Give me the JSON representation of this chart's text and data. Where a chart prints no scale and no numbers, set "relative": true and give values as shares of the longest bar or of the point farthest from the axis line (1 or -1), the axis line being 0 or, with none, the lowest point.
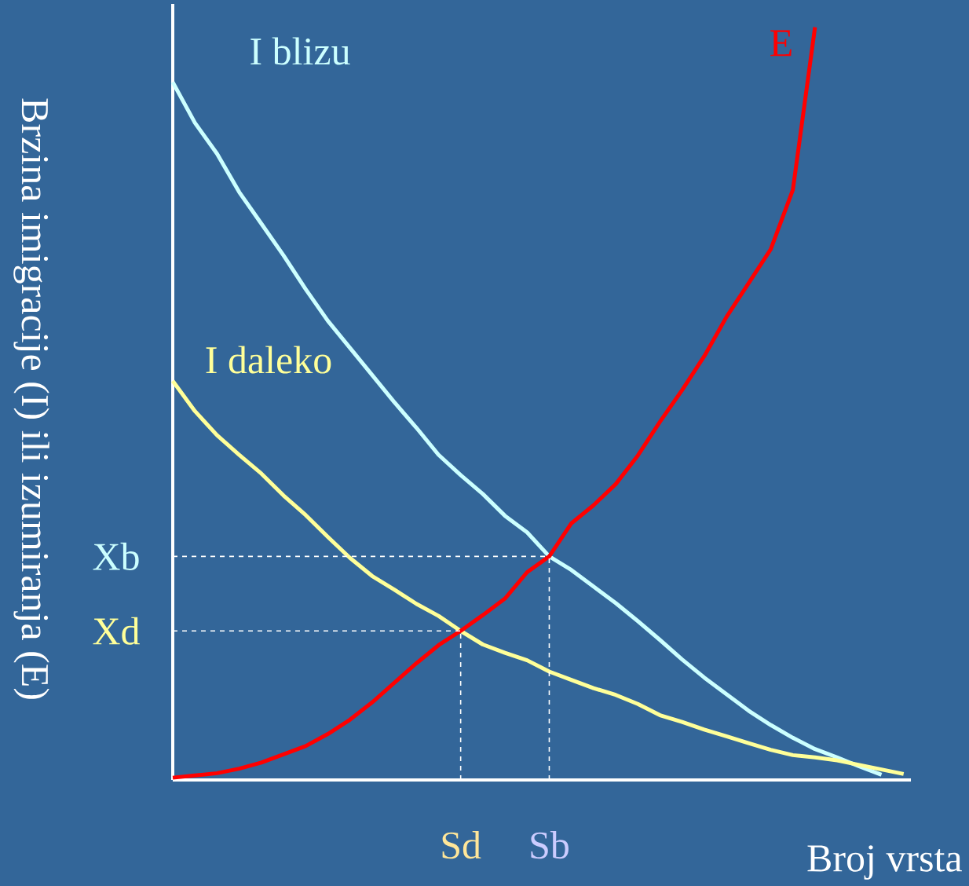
{
  "chart_data": {
    "type": "line",
    "relative": true,
    "xlabel": "Broj vrsta",
    "ylabel": "Brzina imigracije (I) ili izumiranja (E)",
    "categories": [
      null,
      null,
      null,
      null,
      null,
      null,
      null,
      null,
      null,
      null,
      null,
      null,
      null,
      "Sd",
      null,
      null,
      null,
      "Sb",
      null,
      null,
      null,
      null,
      null,
      null,
      null,
      null,
      null,
      null,
      null,
      null,
      null,
      null,
      null,
      null
    ],
    "series": [
      {
        "name": "I blizu",
        "color": "#ccffff",
        "values": [
          0.927,
          0.873,
          0.832,
          0.781,
          0.739,
          0.697,
          0.652,
          0.61,
          0.574,
          0.538,
          0.502,
          0.468,
          0.432,
          0.405,
          0.38,
          0.351,
          0.329,
          0.297,
          0.279,
          0.257,
          0.235,
          0.211,
          0.186,
          0.16,
          0.136,
          0.114,
          0.092,
          0.073,
          0.056,
          0.041,
          0.03,
          0.018,
          0.007,
          null
        ]
      },
      {
        "name": "I daleko",
        "color": "#ffff99",
        "values": [
          0.53,
          0.49,
          0.458,
          0.432,
          0.407,
          0.378,
          0.352,
          0.323,
          0.295,
          0.271,
          0.253,
          0.234,
          0.218,
          0.198,
          0.18,
          0.169,
          0.159,
          0.144,
          0.133,
          0.122,
          0.113,
          0.101,
          0.086,
          0.077,
          0.067,
          0.058,
          0.049,
          0.04,
          0.033,
          0.03,
          0.026,
          0.02,
          0.014,
          0.008
        ]
      },
      {
        "name": "E",
        "color": "#ff0000",
        "values": [
          0.003,
          0.006,
          0.009,
          0.015,
          0.023,
          0.034,
          0.045,
          0.061,
          0.08,
          0.103,
          0.129,
          0.155,
          0.179,
          0.198,
          0.219,
          0.241,
          0.276,
          0.297,
          0.341,
          0.365,
          0.393,
          0.431,
          0.476,
          0.518,
          0.563,
          0.615,
          0.66,
          0.705,
          0.784,
          1,
          null,
          null,
          null,
          null
        ]
      }
    ],
    "ref_lines": [
      {
        "axis": "y",
        "value": 0.297,
        "label": "Xb",
        "line_style": "dashed"
      },
      {
        "axis": "y",
        "value": 0.198,
        "label": "Xd",
        "line_style": "dashed"
      },
      {
        "axis": "x",
        "value": "Sd",
        "line_style": "dashed"
      },
      {
        "axis": "x",
        "value": "Sb",
        "line_style": "dashed"
      }
    ]
  }
}
